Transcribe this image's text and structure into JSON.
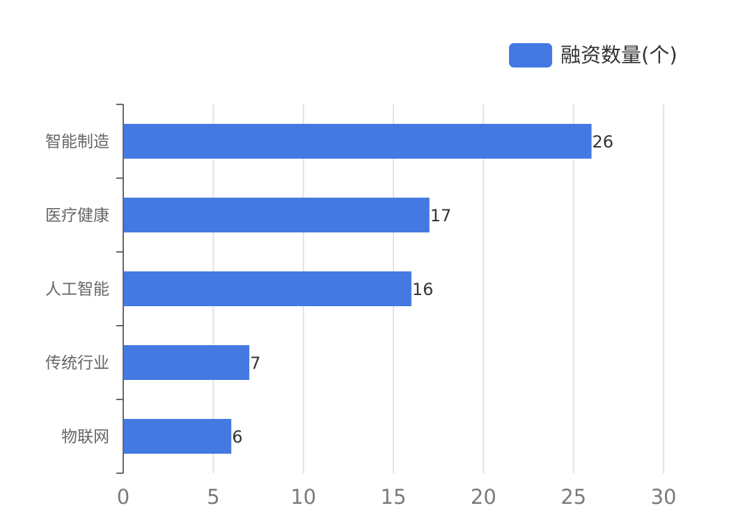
{
  "chart_data": {
    "type": "bar",
    "orientation": "horizontal",
    "categories": [
      "智能制造",
      "医疗健康",
      "人工智能",
      "传统行业",
      "物联网"
    ],
    "series": [
      {
        "name": "融资数量(个)",
        "values": [
          26,
          17,
          16,
          7,
          6
        ],
        "color": "#4479e2"
      }
    ],
    "xlim": [
      0,
      30
    ],
    "x_ticks": [
      0,
      5,
      10,
      15,
      20,
      25,
      30
    ],
    "data_labels": [
      "26",
      "17",
      "16",
      "7",
      "6"
    ],
    "grid": "vertical",
    "legend": "top-right"
  }
}
